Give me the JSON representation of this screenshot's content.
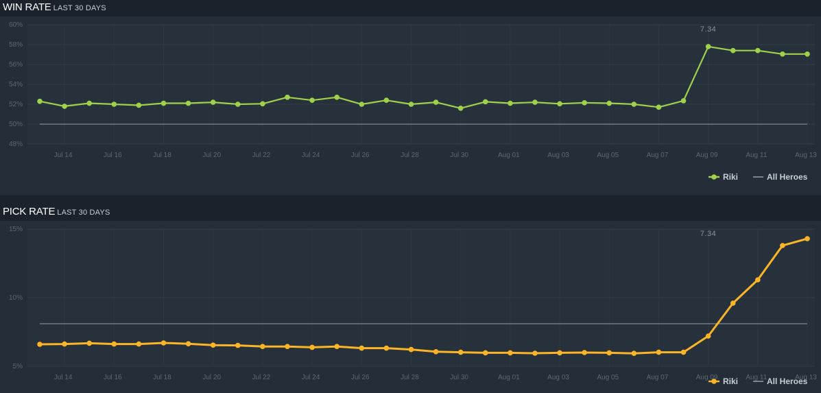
{
  "charts": [
    {
      "id": "win",
      "title": "WIN RATE",
      "subtitle": "LAST 30 DAYS",
      "color": "#9fd24a"
    },
    {
      "id": "pick",
      "title": "PICK RATE",
      "subtitle": "LAST 30 DAYS",
      "color": "#fcb527"
    }
  ],
  "chart_data": [
    {
      "type": "line",
      "title": "WIN RATE LAST 30 DAYS",
      "categories": [
        "Jul 13",
        "Jul 14",
        "Jul 15",
        "Jul 16",
        "Jul 17",
        "Jul 18",
        "Jul 19",
        "Jul 20",
        "Jul 21",
        "Jul 22",
        "Jul 23",
        "Jul 24",
        "Jul 25",
        "Jul 26",
        "Jul 27",
        "Jul 28",
        "Jul 29",
        "Jul 30",
        "Jul 31",
        "Aug 01",
        "Aug 02",
        "Aug 03",
        "Aug 04",
        "Aug 05",
        "Aug 06",
        "Aug 07",
        "Aug 08",
        "Aug 09",
        "Aug 10",
        "Aug 11",
        "Aug 12",
        "Aug 13"
      ],
      "x_tick_labels": [
        "Jul 14",
        "Jul 16",
        "Jul 18",
        "Jul 20",
        "Jul 22",
        "Jul 24",
        "Jul 26",
        "Jul 28",
        "Jul 30",
        "Aug 01",
        "Aug 03",
        "Aug 05",
        "Aug 07",
        "Aug 09",
        "Aug 11",
        "Aug 13"
      ],
      "y_ticks": [
        48,
        50,
        52,
        54,
        56,
        58,
        60
      ],
      "y_tick_labels": [
        "48%",
        "50%",
        "52%",
        "54%",
        "56%",
        "58%",
        "60%"
      ],
      "ylim": [
        48,
        60
      ],
      "series": [
        {
          "name": "Riki",
          "values": [
            52.3,
            51.8,
            52.1,
            52.0,
            51.9,
            52.1,
            52.1,
            52.2,
            52.0,
            52.05,
            52.7,
            52.4,
            52.7,
            52.0,
            52.4,
            52.0,
            52.2,
            51.6,
            52.25,
            52.1,
            52.2,
            52.05,
            52.15,
            52.1,
            52.0,
            51.7,
            52.35,
            57.8,
            57.4,
            57.4,
            57.05,
            57.05
          ]
        },
        {
          "name": "All Heroes",
          "constant": 50
        }
      ],
      "annotation": {
        "label": "7.34",
        "at": "Aug 09"
      },
      "legend": [
        "Riki",
        "All Heroes"
      ]
    },
    {
      "type": "line",
      "title": "PICK RATE LAST 30 DAYS",
      "categories": [
        "Jul 13",
        "Jul 14",
        "Jul 15",
        "Jul 16",
        "Jul 17",
        "Jul 18",
        "Jul 19",
        "Jul 20",
        "Jul 21",
        "Jul 22",
        "Jul 23",
        "Jul 24",
        "Jul 25",
        "Jul 26",
        "Jul 27",
        "Jul 28",
        "Jul 29",
        "Jul 30",
        "Jul 31",
        "Aug 01",
        "Aug 02",
        "Aug 03",
        "Aug 04",
        "Aug 05",
        "Aug 06",
        "Aug 07",
        "Aug 08",
        "Aug 09",
        "Aug 10",
        "Aug 11",
        "Aug 12",
        "Aug 13"
      ],
      "x_tick_labels": [
        "Jul 14",
        "Jul 16",
        "Jul 18",
        "Jul 20",
        "Jul 22",
        "Jul 24",
        "Jul 26",
        "Jul 28",
        "Jul 30",
        "Aug 01",
        "Aug 03",
        "Aug 05",
        "Aug 07",
        "Aug 09",
        "Aug 11",
        "Aug 13"
      ],
      "y_ticks": [
        5,
        10,
        15
      ],
      "y_tick_labels": [
        "5%",
        "10%",
        "15%"
      ],
      "ylim": [
        5,
        15
      ],
      "series": [
        {
          "name": "Riki",
          "values": [
            6.6,
            6.62,
            6.68,
            6.62,
            6.62,
            6.7,
            6.64,
            6.54,
            6.52,
            6.44,
            6.44,
            6.38,
            6.44,
            6.32,
            6.32,
            6.22,
            6.06,
            6.02,
            5.98,
            5.98,
            5.95,
            5.98,
            6.0,
            5.98,
            5.94,
            6.02,
            6.02,
            7.2,
            9.6,
            11.3,
            13.8,
            14.3
          ]
        },
        {
          "name": "All Heroes",
          "constant": 8.1
        }
      ],
      "annotation": {
        "label": "7.34",
        "at": "Aug 09"
      },
      "legend": [
        "Riki",
        "All Heroes"
      ]
    }
  ]
}
